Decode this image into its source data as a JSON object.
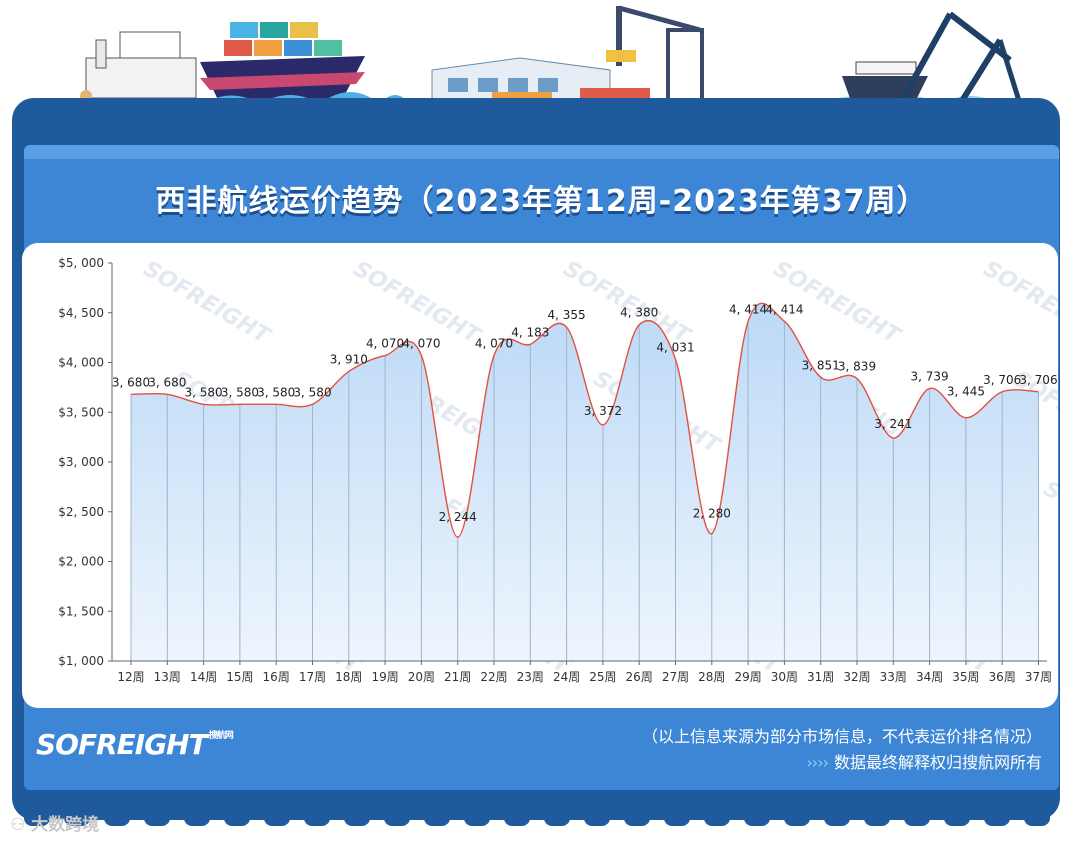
{
  "title": "西非航线运价趋势（2023年第12周-2023年第37周）",
  "logo": {
    "brand": "SOFREIGHT",
    "sub": "搜航网"
  },
  "note": {
    "line1": "（以上信息来源为部分市场信息，不代表运价排名情况）",
    "arrows": "››››",
    "line2": "数据最终解释权归搜航网所有"
  },
  "footer": {
    "text": "大数跨境"
  },
  "watermark": "SOFREIGHT",
  "colors": {
    "board": "#1e5a9c",
    "panel": "#3d86d6",
    "line": "#e2503f",
    "area_top": "#bcd9f6",
    "area_bottom": "#eef5fd"
  },
  "chart_data": {
    "type": "area",
    "title": "西非航线运价趋势（2023年第12周-2023年第37周）",
    "xlabel": "",
    "ylabel": "",
    "ylim": [
      1000,
      5000
    ],
    "yticks": [
      "$1, 000",
      "$1, 500",
      "$2, 000",
      "$2, 500",
      "$3, 000",
      "$3, 500",
      "$4, 000",
      "$4, 500",
      "$5, 000"
    ],
    "grid": "vertical",
    "categories": [
      "12周",
      "13周",
      "14周",
      "15周",
      "16周",
      "17周",
      "18周",
      "19周",
      "20周",
      "21周",
      "22周",
      "23周",
      "24周",
      "25周",
      "26周",
      "27周",
      "28周",
      "29周",
      "30周",
      "31周",
      "32周",
      "33周",
      "34周",
      "35周",
      "36周",
      "37周"
    ],
    "values": [
      3680,
      3680,
      3580,
      3580,
      3580,
      3580,
      3910,
      4070,
      4070,
      2244,
      4070,
      4183,
      4355,
      3372,
      4380,
      4031,
      2280,
      4414,
      4414,
      3851,
      3839,
      3241,
      3739,
      3445,
      3706,
      3706
    ],
    "labels": [
      "3, 680",
      "3, 680",
      "3, 580",
      "3, 580",
      "3, 580",
      "3, 580",
      "3, 910",
      "4, 070",
      "4, 070",
      "2, 244",
      "4, 070",
      "4, 183",
      "4, 355",
      "3, 372",
      "4, 380",
      "4, 031",
      "2, 280",
      "4, 414",
      "4, 414",
      "3, 851",
      "3, 839",
      "3, 241",
      "3, 739",
      "3, 445",
      "3, 706",
      "3, 706"
    ]
  }
}
